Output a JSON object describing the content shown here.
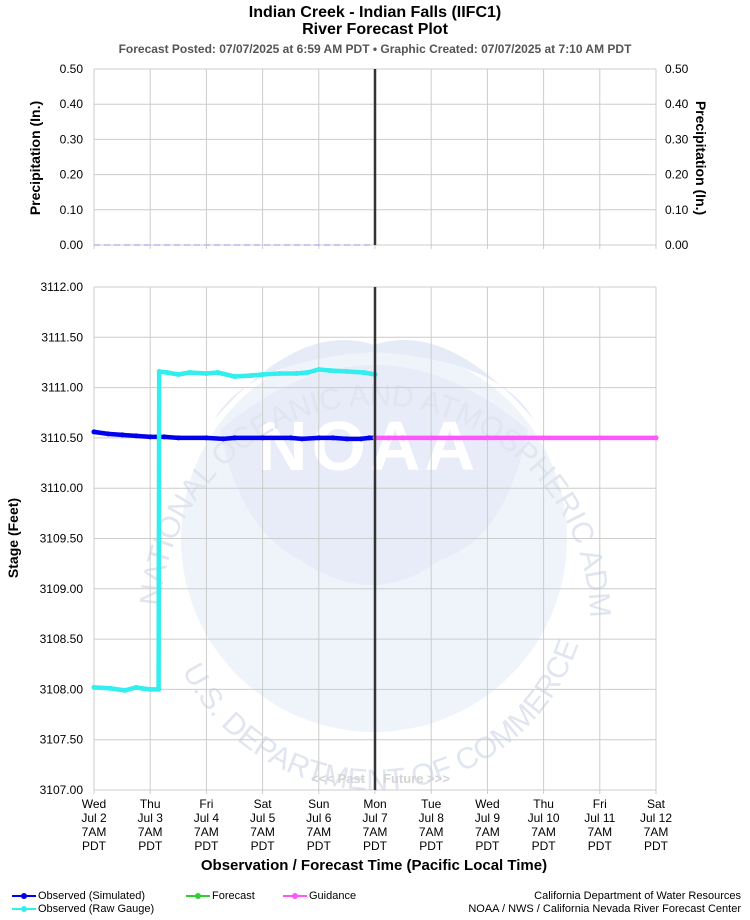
{
  "header": {
    "title": "Indian Creek - Indian Falls (IIFC1)",
    "subtitle": "River Forecast Plot",
    "posted": "Forecast Posted: 07/07/2025 at 6:59 AM PDT  •  Graphic Created: 07/07/2025 at 7:10 AM PDT"
  },
  "watermark": {
    "arc_text": "NATIONAL OCEANIC AND ATMOSPHERIC ADMINISTRATION",
    "bottom_text": "U.S. DEPARTMENT OF COMMERCE",
    "logo_text": "NOAA"
  },
  "past_label": "<<< Past",
  "future_label": "Future >>>",
  "legend": {
    "observed_simulated": "Observed (Simulated)",
    "observed_raw": "Observed (Raw Gauge)",
    "forecast": "Forecast",
    "guidance": "Guidance"
  },
  "credits": {
    "line1": "California Department of Water Resources",
    "line2": "NOAA / NWS / California Nevada River Forecast Center"
  },
  "colors": {
    "observed_simulated": "#0000ee",
    "observed_raw": "#33eeee",
    "forecast": "#33cc33",
    "guidance": "#ff55ff",
    "now_line": "#333333",
    "grid": "#cccccc"
  },
  "chart_data": [
    {
      "type": "line",
      "title": "",
      "ylabel": "Precipitation (In.)",
      "ylabel_right": "Precipitation (In.)",
      "ylim": [
        0,
        0.5
      ],
      "yticks": [
        "0.00",
        "0.10",
        "0.20",
        "0.30",
        "0.40",
        "0.50"
      ],
      "grid": true,
      "series": []
    },
    {
      "type": "line",
      "ylabel": "Stage (Feet)",
      "xlabel": "Observation / Forecast Time (Pacific Local Time)",
      "ylim": [
        3107.0,
        3112.0
      ],
      "yticks": [
        "3107.00",
        "3107.50",
        "3108.00",
        "3108.50",
        "3109.00",
        "3109.50",
        "3110.00",
        "3110.50",
        "3111.00",
        "3111.50",
        "3112.00"
      ],
      "xlim": [
        0,
        10
      ],
      "now_x": 5,
      "grid": true,
      "x_ticks": [
        [
          "Wed",
          "Jul 2",
          "7AM",
          "PDT"
        ],
        [
          "Thu",
          "Jul 3",
          "7AM",
          "PDT"
        ],
        [
          "Fri",
          "Jul 4",
          "7AM",
          "PDT"
        ],
        [
          "Sat",
          "Jul 5",
          "7AM",
          "PDT"
        ],
        [
          "Sun",
          "Jul 6",
          "7AM",
          "PDT"
        ],
        [
          "Mon",
          "Jul 7",
          "7AM",
          "PDT"
        ],
        [
          "Tue",
          "Jul 8",
          "7AM",
          "PDT"
        ],
        [
          "Wed",
          "Jul 9",
          "7AM",
          "PDT"
        ],
        [
          "Thu",
          "Jul 10",
          "7AM",
          "PDT"
        ],
        [
          "Fri",
          "Jul 11",
          "7AM",
          "PDT"
        ],
        [
          "Sat",
          "Jul 12",
          "7AM",
          "PDT"
        ]
      ],
      "series": [
        {
          "name": "Observed (Simulated)",
          "color": "#0000ee",
          "x": [
            0,
            0.25,
            0.5,
            0.75,
            1.0,
            1.25,
            1.5,
            2.0,
            2.3,
            2.5,
            3.0,
            3.5,
            3.7,
            4.0,
            4.25,
            4.5,
            4.75,
            4.9,
            5.0
          ],
          "y": [
            3110.56,
            3110.54,
            3110.53,
            3110.52,
            3110.51,
            3110.51,
            3110.5,
            3110.5,
            3110.49,
            3110.5,
            3110.5,
            3110.5,
            3110.49,
            3110.5,
            3110.5,
            3110.49,
            3110.49,
            3110.5,
            3110.5
          ]
        },
        {
          "name": "Observed (Raw Gauge)",
          "color": "#33eeee",
          "x": [
            0,
            0.3,
            0.55,
            0.75,
            0.85,
            1.0,
            1.15,
            1.16,
            1.3,
            1.5,
            1.7,
            2.0,
            2.2,
            2.5,
            2.8,
            3.0,
            3.3,
            3.6,
            3.8,
            4.0,
            4.2,
            4.5,
            4.8,
            5.0
          ],
          "y": [
            3108.02,
            3108.01,
            3107.99,
            3108.02,
            3108.01,
            3108.0,
            3108.0,
            3111.16,
            3111.15,
            3111.13,
            3111.15,
            3111.14,
            3111.15,
            3111.11,
            3111.12,
            3111.13,
            3111.14,
            3111.14,
            3111.15,
            3111.18,
            3111.17,
            3111.16,
            3111.15,
            3111.13
          ]
        },
        {
          "name": "Guidance",
          "color": "#ff55ff",
          "x": [
            5.0,
            5.25,
            5.5,
            6,
            7,
            8,
            9,
            10
          ],
          "y": [
            3110.5,
            3110.5,
            3110.5,
            3110.5,
            3110.5,
            3110.5,
            3110.5,
            3110.5
          ]
        }
      ]
    }
  ]
}
